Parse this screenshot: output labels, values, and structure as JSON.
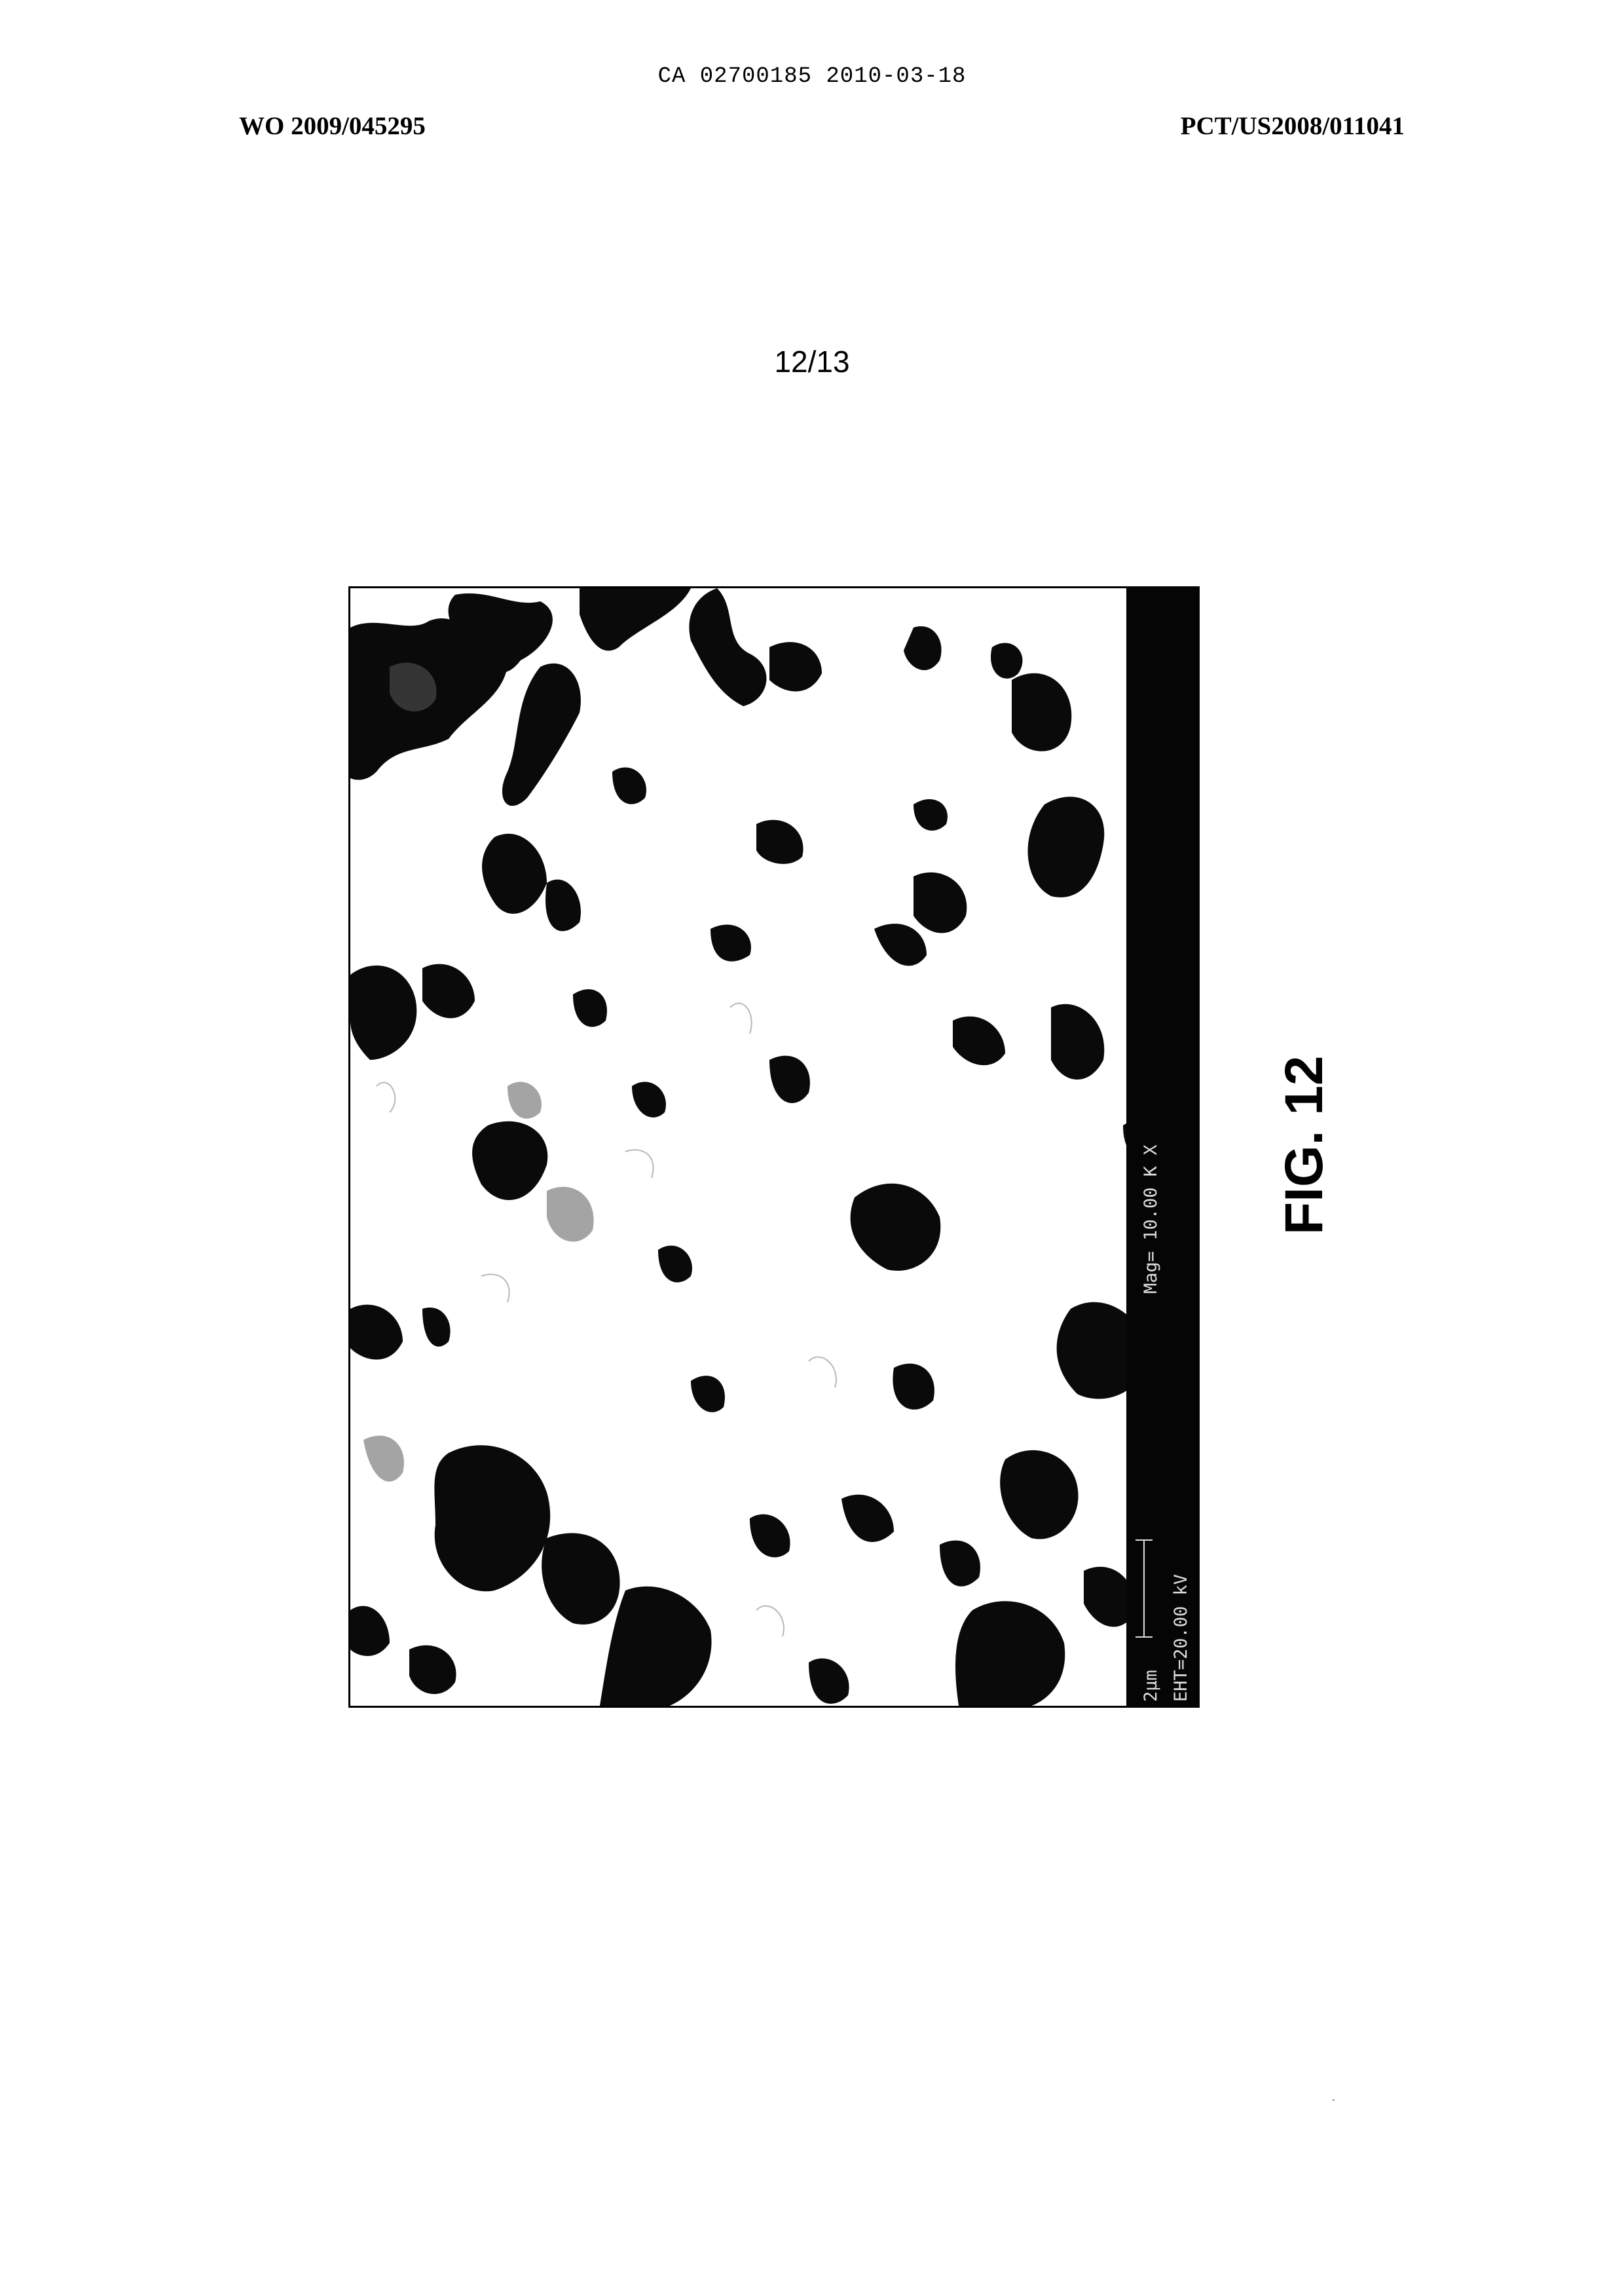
{
  "document": {
    "doc_id": "CA 02700185 2010-03-18",
    "pub_number": "WO 2009/045295",
    "app_number": "PCT/US2008/011041",
    "page_number": "12/13"
  },
  "figure": {
    "label": "FIG. 12",
    "micrograph": {
      "magnification": "Mag= 10.00 K X",
      "eht": "EHT=20.00 kV",
      "scale": "2μm"
    }
  }
}
